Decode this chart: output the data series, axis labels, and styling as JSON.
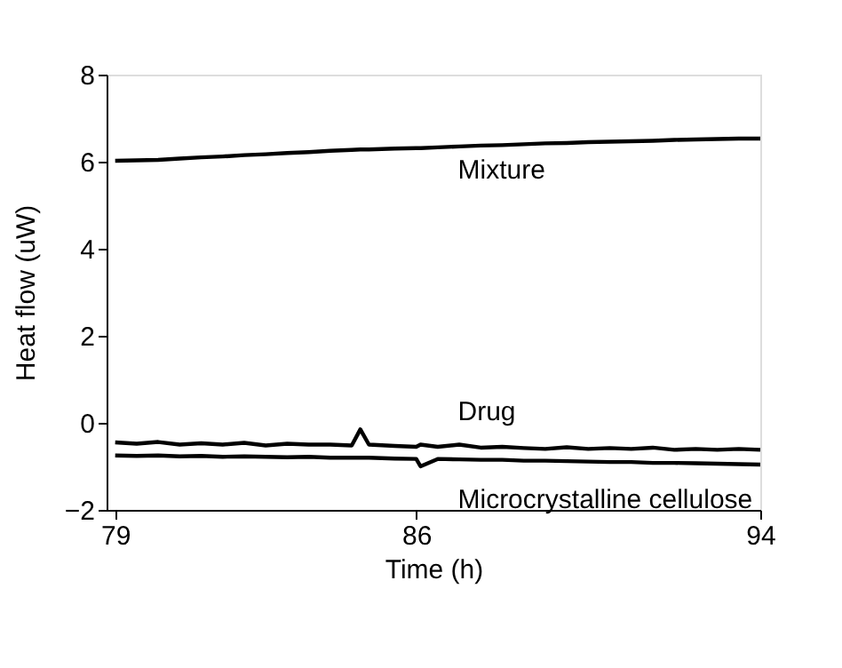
{
  "chart_data": {
    "type": "line",
    "xlabel": "Time (h)",
    "ylabel": "Heat flow (uW)",
    "x": [
      79,
      79.5,
      80,
      80.5,
      81,
      81.5,
      82,
      82.5,
      83,
      83.5,
      84,
      84.5,
      84.7,
      84.9,
      85.5,
      86,
      86.1,
      86.5,
      87,
      87.5,
      88,
      88.5,
      89,
      89.5,
      90,
      90.5,
      91,
      91.5,
      92,
      92.5,
      93,
      93.5,
      94
    ],
    "series": [
      {
        "name": "Mixture",
        "color": "#000000",
        "values": [
          6.02,
          6.03,
          6.04,
          6.07,
          6.1,
          6.12,
          6.15,
          6.17,
          6.2,
          6.22,
          6.25,
          6.27,
          6.28,
          6.28,
          6.3,
          6.31,
          6.31,
          6.33,
          6.35,
          6.37,
          6.38,
          6.4,
          6.42,
          6.43,
          6.45,
          6.46,
          6.47,
          6.48,
          6.5,
          6.51,
          6.52,
          6.53,
          6.53
        ]
      },
      {
        "name": "Drug",
        "color": "#000000",
        "values": [
          -0.45,
          -0.48,
          -0.44,
          -0.5,
          -0.47,
          -0.5,
          -0.46,
          -0.52,
          -0.48,
          -0.5,
          -0.5,
          -0.52,
          -0.15,
          -0.5,
          -0.53,
          -0.55,
          -0.5,
          -0.55,
          -0.5,
          -0.57,
          -0.55,
          -0.58,
          -0.6,
          -0.56,
          -0.6,
          -0.58,
          -0.6,
          -0.57,
          -0.62,
          -0.6,
          -0.62,
          -0.6,
          -0.62
        ]
      },
      {
        "name": "Microcrystalline cellulose",
        "color": "#000000",
        "values": [
          -0.75,
          -0.76,
          -0.75,
          -0.77,
          -0.76,
          -0.78,
          -0.77,
          -0.78,
          -0.79,
          -0.78,
          -0.8,
          -0.8,
          -0.8,
          -0.8,
          -0.82,
          -0.83,
          -1.0,
          -0.83,
          -0.84,
          -0.85,
          -0.85,
          -0.87,
          -0.87,
          -0.88,
          -0.89,
          -0.9,
          -0.9,
          -0.92,
          -0.92,
          -0.93,
          -0.94,
          -0.95,
          -0.96
        ]
      }
    ],
    "xlim": [
      78.8,
      94
    ],
    "xticks": [
      79,
      86,
      94
    ],
    "ylim": [
      -2,
      8
    ],
    "yticks": [
      {
        "value": -2,
        "label": "−2"
      },
      0,
      2,
      4,
      6,
      8
    ],
    "marker": "none",
    "line_style": "solid"
  }
}
